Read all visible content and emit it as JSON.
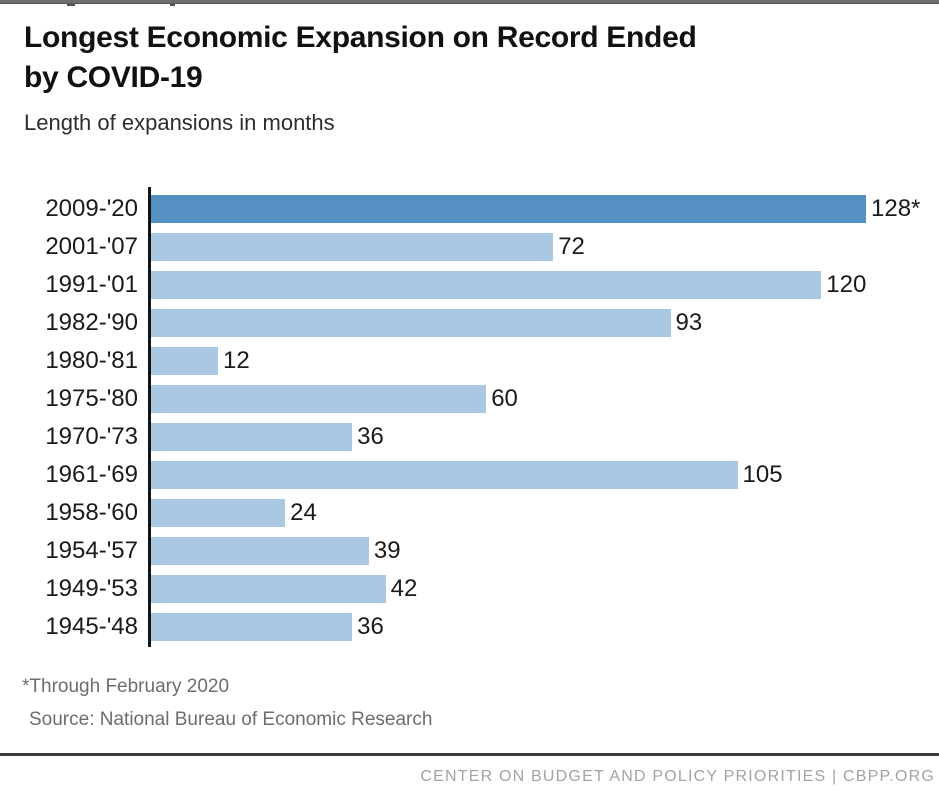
{
  "header": {
    "title_line1": "Longest Economic Expansion on Record Ended",
    "title_line2": "by COVID-19",
    "subtitle": "Length of expansions in months"
  },
  "chart_data": {
    "type": "bar",
    "orientation": "horizontal",
    "title": "Longest Economic Expansion on Record Ended by COVID-19",
    "subtitle": "Length of expansions in months",
    "categories": [
      "2009-'20",
      "2001-'07",
      "1991-'01",
      "1982-'90",
      "1980-'81",
      "1975-'80",
      "1970-'73",
      "1961-'69",
      "1958-'60",
      "1954-'57",
      "1949-'53",
      "1945-'48"
    ],
    "values": [
      128,
      72,
      120,
      93,
      12,
      60,
      36,
      105,
      24,
      39,
      42,
      36
    ],
    "value_labels": [
      "128*",
      "72",
      "120",
      "93",
      "12",
      "60",
      "36",
      "105",
      "24",
      "39",
      "42",
      "36"
    ],
    "xlim": [
      0,
      128
    ],
    "grid": false,
    "highlight_index": 0,
    "colors": {
      "highlight": "#5590C2",
      "default": "#AAC8E1",
      "axis": "#141414"
    }
  },
  "footnotes": {
    "note": "*Through February 2020",
    "source": "Source: National Bureau of Economic Research"
  },
  "footer": {
    "text": "CENTER ON BUDGET AND POLICY PRIORITIES | CBPP.ORG"
  }
}
